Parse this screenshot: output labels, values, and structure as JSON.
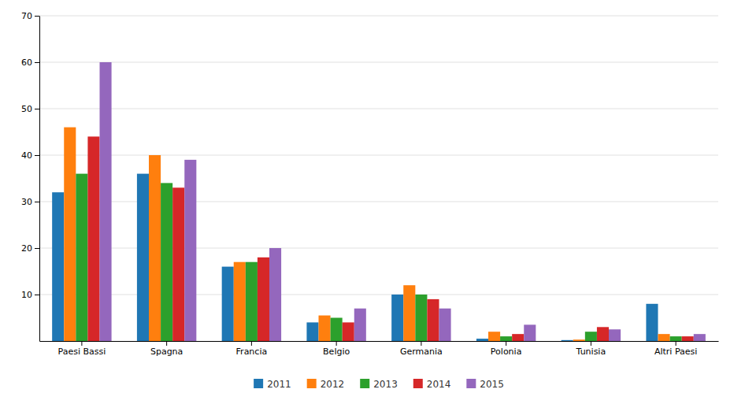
{
  "chart_data": {
    "type": "bar",
    "categories": [
      "Paesi Bassi",
      "Spagna",
      "Francia",
      "Belgio",
      "Germania",
      "Polonia",
      "Tunisia",
      "Altri Paesi"
    ],
    "series": [
      {
        "name": "2011",
        "values": [
          32,
          36,
          16,
          4,
          10,
          0.5,
          0.2,
          8
        ]
      },
      {
        "name": "2012",
        "values": [
          46,
          40,
          17,
          5.5,
          12,
          2,
          0.3,
          1.5
        ]
      },
      {
        "name": "2013",
        "values": [
          36,
          34,
          17,
          5,
          10,
          1,
          2,
          1
        ]
      },
      {
        "name": "2014",
        "values": [
          44,
          33,
          18,
          4,
          9,
          1.5,
          3,
          1
        ]
      },
      {
        "name": "2015",
        "values": [
          60,
          39,
          20,
          7,
          7,
          3.5,
          2.5,
          1.5
        ]
      }
    ],
    "ylim": [
      0,
      70
    ],
    "yticks": [
      10,
      20,
      30,
      40,
      50,
      60,
      70
    ],
    "grid": true,
    "legend": "bottom"
  }
}
